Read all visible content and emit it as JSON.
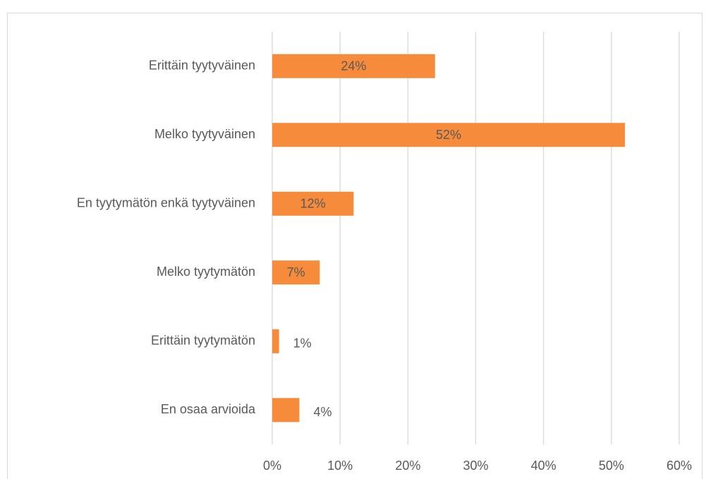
{
  "chart_data": {
    "type": "bar",
    "orientation": "horizontal",
    "categories": [
      "Erittäin tyytyväinen",
      "Melko tyytyväinen",
      "En tyytymätön enkä tyytyväinen",
      "Melko tyytymätön",
      "Erittäin tyytymätön",
      "En osaa arvioida"
    ],
    "values": [
      24,
      52,
      12,
      7,
      1,
      4
    ],
    "value_labels": [
      "24%",
      "52%",
      "12%",
      "7%",
      "1%",
      "4%"
    ],
    "color": "#f58b3b",
    "xlim": [
      0,
      60
    ],
    "xticks": [
      {
        "value": 0,
        "label": "0%"
      },
      {
        "value": 10,
        "label": "10%"
      },
      {
        "value": 20,
        "label": "20%"
      },
      {
        "value": 30,
        "label": "30%"
      },
      {
        "value": 40,
        "label": "40%"
      },
      {
        "value": 50,
        "label": "50%"
      },
      {
        "value": 60,
        "label": "60%"
      }
    ],
    "grid": true
  }
}
